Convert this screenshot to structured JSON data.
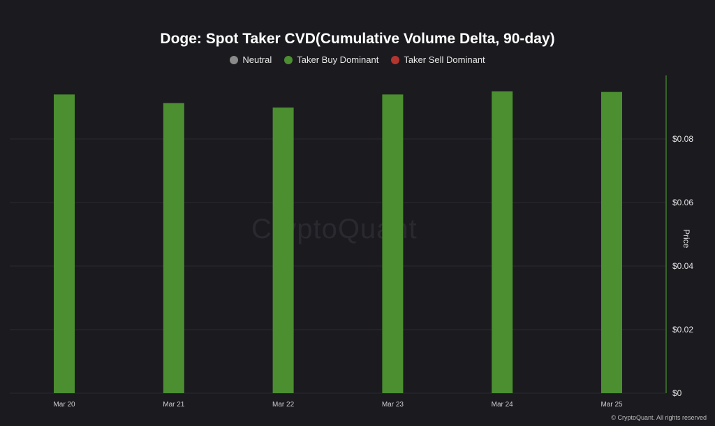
{
  "chart_data": {
    "type": "bar",
    "title": "Doge: Spot Taker CVD(Cumulative Volume Delta, 90-day)",
    "ylabel": "Price",
    "categories": [
      "Mar 20",
      "Mar 21",
      "Mar 22",
      "Mar 23",
      "Mar 24",
      "Mar 25"
    ],
    "series": [
      {
        "name": "Taker Buy Dominant",
        "color": "#4b8f30",
        "values": [
          0.094,
          0.0913,
          0.0899,
          0.094,
          0.095,
          0.0948
        ]
      }
    ],
    "ylim": [
      0,
      0.1
    ],
    "yticks": [
      "$0",
      "$0.02",
      "$0.04",
      "$0.06",
      "$0.08"
    ],
    "ytick_values": [
      0,
      0.02,
      0.04,
      0.06,
      0.08
    ],
    "legend": [
      {
        "label": "Neutral",
        "color": "#8a8a8a"
      },
      {
        "label": "Taker Buy Dominant",
        "color": "#4b8f30"
      },
      {
        "label": "Taker Sell Dominant",
        "color": "#b3352f"
      }
    ],
    "legend_position": "top-center",
    "grid": true,
    "watermark": "CryptoQuant",
    "copyright": "© CryptoQuant. All rights reserved"
  }
}
